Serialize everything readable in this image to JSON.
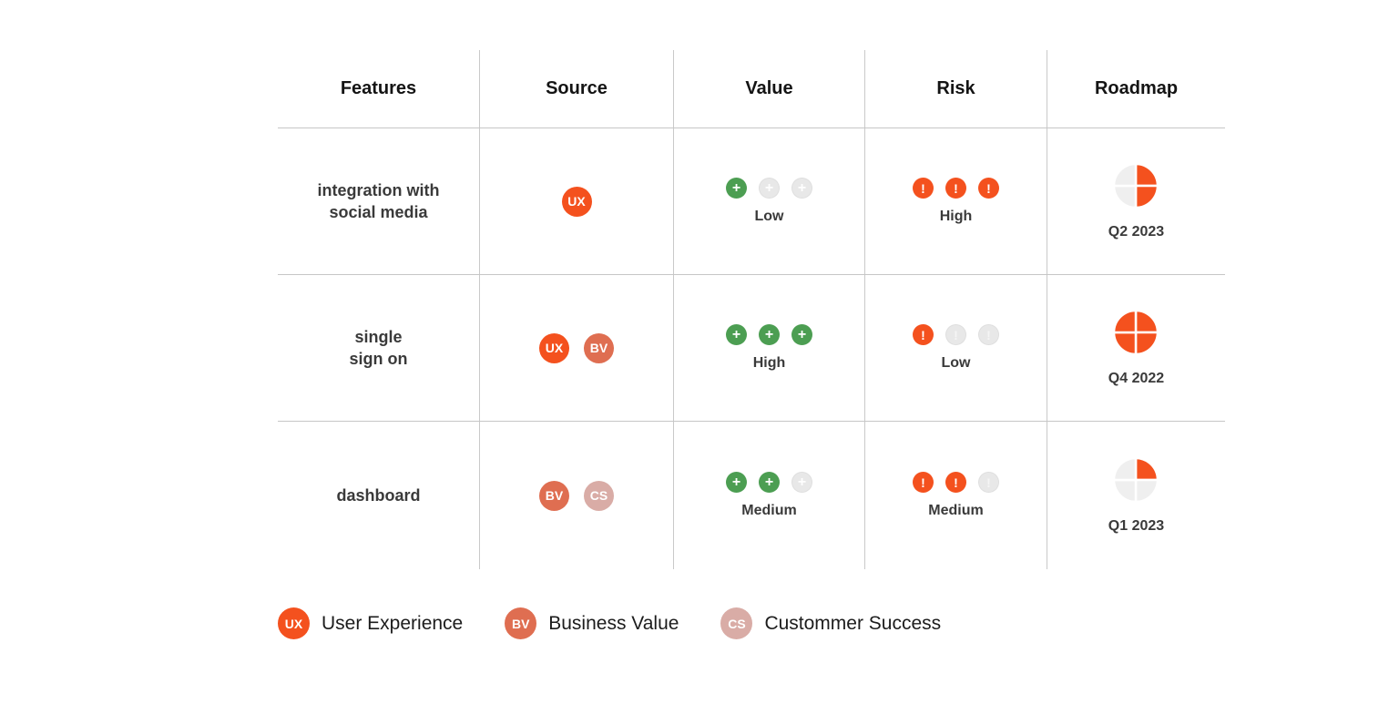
{
  "table": {
    "headers": [
      {
        "id": "features",
        "label": "Features"
      },
      {
        "id": "source",
        "label": "Source"
      },
      {
        "id": "value",
        "label": "Value"
      },
      {
        "id": "risk",
        "label": "Risk"
      },
      {
        "id": "roadmap",
        "label": "Roadmap"
      }
    ],
    "rows": [
      {
        "feature_lines": [
          "integration with",
          "social media"
        ],
        "sources": [
          "UX"
        ],
        "value": {
          "filled": 1,
          "total": 3,
          "label": "Low"
        },
        "risk": {
          "filled": 3,
          "total": 3,
          "label": "High"
        },
        "roadmap": {
          "quarters_filled": 2,
          "label": "Q2 2023"
        }
      },
      {
        "feature_lines": [
          "single",
          "sign on"
        ],
        "sources": [
          "UX",
          "BV"
        ],
        "value": {
          "filled": 3,
          "total": 3,
          "label": "High"
        },
        "risk": {
          "filled": 1,
          "total": 3,
          "label": "Low"
        },
        "roadmap": {
          "quarters_filled": 4,
          "label": "Q4 2022"
        }
      },
      {
        "feature_lines": [
          "dashboard"
        ],
        "sources": [
          "BV",
          "CS"
        ],
        "value": {
          "filled": 2,
          "total": 3,
          "label": "Medium"
        },
        "risk": {
          "filled": 2,
          "total": 3,
          "label": "Medium"
        },
        "roadmap": {
          "quarters_filled": 1,
          "label": "Q1 2023"
        }
      }
    ]
  },
  "legend": [
    {
      "code": "UX",
      "label": "User Experience"
    },
    {
      "code": "BV",
      "label": "Business Value"
    },
    {
      "code": "CS",
      "label": "Custommer Success"
    }
  ],
  "badge_colors": {
    "UX": "#f4511e",
    "BV": "#df6e51",
    "CS": "#d9aca6"
  },
  "colors": {
    "accent_orange": "#f4511e",
    "value_green": "#4c9e52",
    "inactive_grey": "#e8e8e8",
    "pie_empty_grey": "#efefef",
    "grid_line": "#c9c9c9",
    "text_dark": "#3a3a3a",
    "text_black": "#141414"
  },
  "icons": {
    "value_dot": "plus-icon",
    "risk_dot": "exclamation-icon",
    "roadmap": "quarter-pie-icon"
  }
}
